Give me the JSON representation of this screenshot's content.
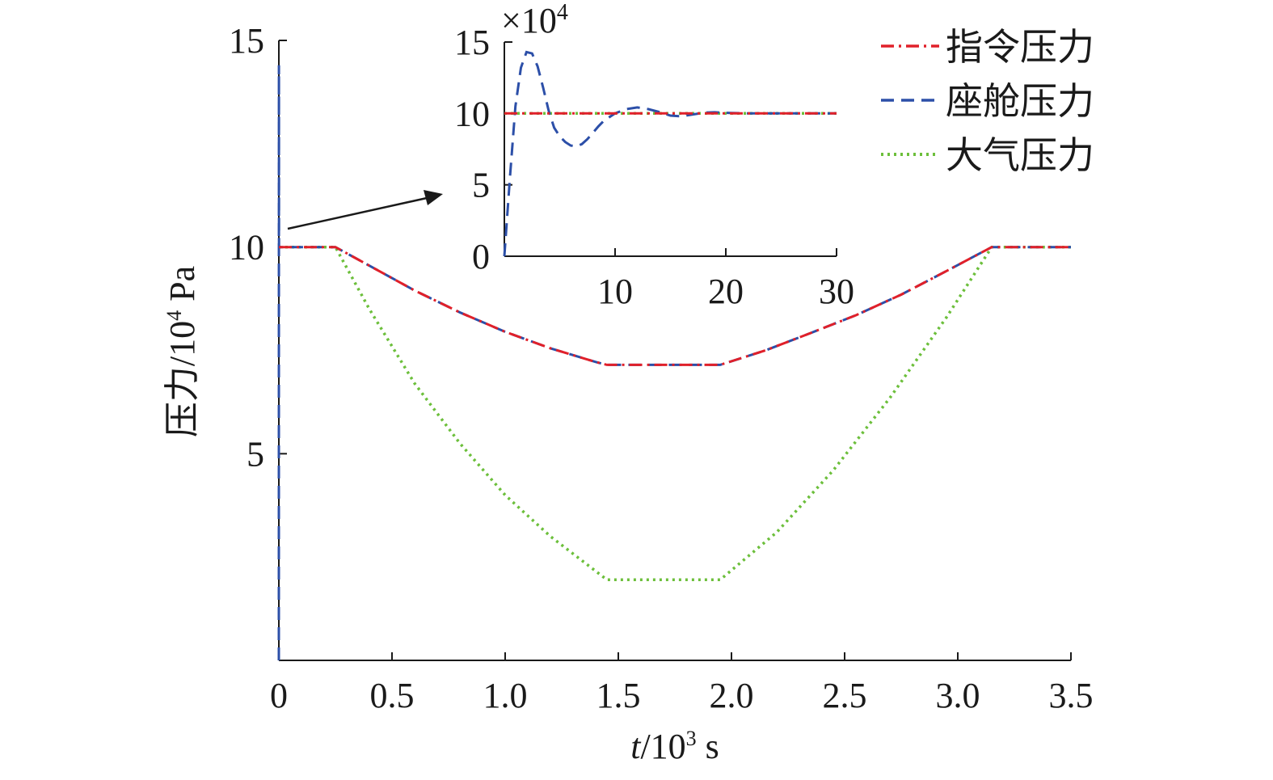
{
  "chart_data": [
    {
      "type": "line",
      "xlabel_var": "t",
      "xlabel_sep": "/10",
      "xlabel_exp": "3",
      "xlabel_unit": " s",
      "ylabel_main": "压力/10",
      "ylabel_exp": "4",
      "ylabel_unit": " Pa",
      "xlim": [
        0,
        3.5
      ],
      "ylim": [
        0,
        15
      ],
      "xticks": [
        0,
        0.5,
        1.0,
        1.5,
        2.0,
        2.5,
        3.0,
        3.5
      ],
      "xtick_labels": [
        "0",
        "0.5",
        "1.0",
        "1.5",
        "2.0",
        "2.5",
        "3.0",
        "3.5"
      ],
      "yticks": [
        5,
        10,
        15
      ],
      "ytick_labels": [
        "5",
        "10",
        "15"
      ],
      "legend_position": "top-right",
      "series": [
        {
          "name": "指令压力",
          "style": "dash-dot",
          "color": "#e0202a",
          "x": [
            0,
            0.25,
            0.4,
            0.6,
            0.8,
            1.0,
            1.2,
            1.4,
            1.45,
            1.95,
            2.15,
            2.35,
            2.55,
            2.75,
            2.95,
            3.15,
            3.5
          ],
          "y": [
            10.0,
            10.0,
            9.55,
            8.95,
            8.42,
            7.95,
            7.55,
            7.22,
            7.15,
            7.15,
            7.5,
            7.92,
            8.35,
            8.85,
            9.42,
            10.0,
            10.0
          ]
        },
        {
          "name": "座舱压力",
          "style": "dashed",
          "color": "#2c4fa8",
          "x": [
            0,
            0.0003,
            0.0006,
            0.25,
            0.4,
            0.6,
            0.8,
            1.0,
            1.2,
            1.4,
            1.45,
            1.95,
            2.15,
            2.35,
            2.55,
            2.75,
            2.95,
            3.15,
            3.5
          ],
          "y": [
            0,
            14.4,
            10.0,
            10.0,
            9.55,
            8.95,
            8.42,
            7.95,
            7.55,
            7.22,
            7.15,
            7.15,
            7.5,
            7.92,
            8.35,
            8.85,
            9.42,
            10.0,
            10.0
          ]
        },
        {
          "name": "大气压力",
          "style": "dotted",
          "color": "#6cbf3b",
          "x": [
            0,
            0.25,
            0.4,
            0.6,
            0.8,
            1.0,
            1.2,
            1.45,
            1.95,
            2.2,
            2.45,
            2.7,
            2.95,
            3.15,
            3.5
          ],
          "y": [
            10.0,
            10.0,
            8.5,
            6.7,
            5.25,
            4.0,
            3.0,
            1.95,
            1.95,
            3.1,
            4.6,
            6.35,
            8.3,
            10.0,
            10.0
          ]
        }
      ]
    },
    {
      "type": "line",
      "inset": true,
      "multiplier_label": "×10",
      "multiplier_exp": "4",
      "xlim": [
        0,
        30
      ],
      "ylim": [
        0,
        15
      ],
      "xticks": [
        10,
        20,
        30
      ],
      "xtick_labels": [
        "10",
        "20",
        "30"
      ],
      "yticks": [
        0,
        5,
        10,
        15
      ],
      "ytick_labels": [
        "0",
        "5",
        "10",
        "15"
      ],
      "series": [
        {
          "name": "指令压力",
          "style": "dash-dot",
          "color": "#e0202a",
          "x": [
            0,
            30
          ],
          "y": [
            10.0,
            10.0
          ]
        },
        {
          "name": "座舱压力",
          "style": "dashed",
          "color": "#2c4fa8",
          "x": [
            0,
            0.5,
            1.0,
            1.5,
            2.0,
            2.5,
            3.0,
            3.5,
            4.0,
            4.5,
            5.0,
            5.5,
            6.0,
            6.5,
            7.0,
            7.5,
            8.0,
            8.5,
            9.0,
            10.0,
            11.0,
            12.0,
            13.0,
            14.0,
            15.0,
            16.0,
            17.0,
            18.0,
            19.0,
            20.0,
            22.0,
            25.0,
            30.0
          ],
          "y": [
            0,
            5.5,
            10.5,
            13.2,
            14.3,
            14.2,
            13.3,
            11.8,
            10.2,
            9.0,
            8.4,
            8.0,
            7.75,
            7.7,
            7.85,
            8.2,
            8.65,
            9.1,
            9.5,
            10.0,
            10.3,
            10.42,
            10.3,
            10.1,
            9.85,
            9.8,
            9.92,
            10.05,
            10.08,
            10.04,
            10.0,
            10.0,
            10.0
          ]
        },
        {
          "name": "大气压力",
          "style": "dotted",
          "color": "#6cbf3b",
          "x": [
            0,
            30
          ],
          "y": [
            10.0,
            10.0
          ]
        }
      ]
    }
  ]
}
